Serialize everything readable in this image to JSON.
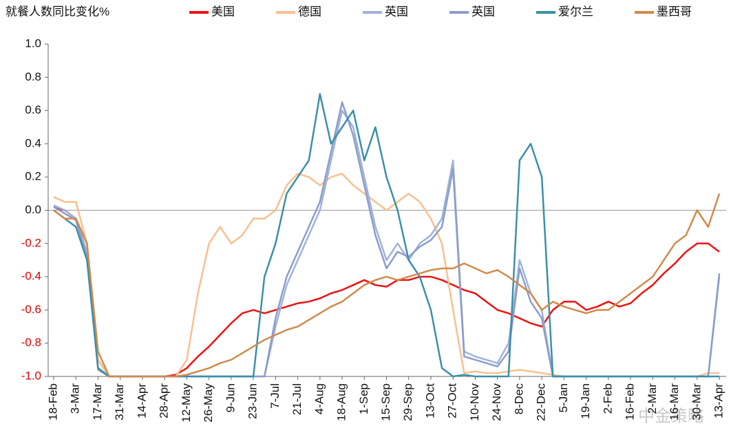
{
  "chart_data": {
    "type": "line",
    "title": "就餐人数同比变化%",
    "watermark": "中金策略",
    "categories": [
      "18-Feb",
      null,
      "3-Mar",
      null,
      "17-Mar",
      null,
      "31-Mar",
      null,
      "14-Apr",
      null,
      "28-Apr",
      null,
      "12-May",
      null,
      "26-May",
      null,
      "9-Jun",
      null,
      "23-Jun",
      null,
      "7-Jul",
      null,
      "21-Jul",
      null,
      "4-Aug",
      null,
      "18-Aug",
      null,
      "1-Sep",
      null,
      "15-Sep",
      null,
      "29-Sep",
      null,
      "13-Oct",
      null,
      "27-Oct",
      null,
      "10-Nov",
      null,
      "24-Nov",
      null,
      "8-Dec",
      null,
      "22-Dec",
      null,
      "5-Jan",
      null,
      "19-Jan",
      null,
      "2-Feb",
      null,
      "16-Feb",
      null,
      "2-Mar",
      null,
      "16-Mar",
      null,
      "30-Mar",
      null,
      "13-Apr"
    ],
    "series": [
      {
        "name": "美国",
        "color": "#ee1111",
        "values": [
          0.02,
          0.0,
          -0.05,
          -0.2,
          -0.9,
          -1,
          -1,
          -1,
          -1,
          -1,
          -1,
          -0.99,
          -0.95,
          -0.88,
          -0.82,
          -0.75,
          -0.68,
          -0.62,
          -0.6,
          -0.62,
          -0.6,
          -0.58,
          -0.56,
          -0.55,
          -0.53,
          -0.5,
          -0.48,
          -0.45,
          -0.42,
          -0.45,
          -0.46,
          -0.42,
          -0.42,
          -0.4,
          -0.4,
          -0.42,
          -0.45,
          -0.48,
          -0.5,
          -0.55,
          -0.6,
          -0.62,
          -0.65,
          -0.68,
          -0.7,
          -0.6,
          -0.55,
          -0.55,
          -0.6,
          -0.58,
          -0.55,
          -0.58,
          -0.56,
          -0.5,
          -0.45,
          -0.38,
          -0.32,
          -0.25,
          -0.2,
          -0.2,
          -0.25
        ]
      },
      {
        "name": "德国",
        "color": "#f8c08e",
        "values": [
          0.08,
          0.05,
          0.05,
          -0.2,
          -0.9,
          -1,
          -1,
          -1,
          -1,
          -1,
          -1,
          -1,
          -0.9,
          -0.5,
          -0.2,
          -0.1,
          -0.2,
          -0.15,
          -0.05,
          -0.05,
          0.0,
          0.15,
          0.22,
          0.2,
          0.15,
          0.2,
          0.22,
          0.15,
          0.1,
          0.05,
          0.0,
          0.05,
          0.1,
          0.05,
          -0.05,
          -0.2,
          -0.6,
          -0.98,
          -0.97,
          -0.98,
          -0.98,
          -0.97,
          -0.96,
          -0.97,
          -0.98,
          -0.99,
          -1,
          -1,
          -1,
          -1,
          -1,
          -1,
          -1,
          -1,
          -1,
          -1,
          -1,
          -1,
          -1,
          -0.98,
          -0.98
        ]
      },
      {
        "name": "英国",
        "color": "#9fb2da",
        "values": [
          0.03,
          0.0,
          -0.05,
          -0.25,
          -0.95,
          -1,
          -1,
          -1,
          -1,
          -1,
          -1,
          -1,
          -1,
          -1,
          -1,
          -1,
          -1,
          -1,
          -1,
          -1,
          -0.7,
          -0.45,
          -0.3,
          -0.15,
          0.0,
          0.3,
          0.6,
          0.5,
          0.2,
          -0.1,
          -0.3,
          -0.2,
          -0.3,
          -0.2,
          -0.15,
          -0.05,
          0.3,
          -0.85,
          -0.88,
          -0.9,
          -0.92,
          -0.8,
          -0.3,
          -0.5,
          -0.6,
          -1,
          -1,
          -1,
          -1,
          -1,
          -1,
          -1,
          -1,
          -1,
          -1,
          -1,
          -1,
          -1,
          -1,
          -1,
          -0.4
        ]
      },
      {
        "name": "英国",
        "color": "#8c9ccb",
        "values": [
          0.02,
          -0.02,
          -0.06,
          -0.28,
          -0.96,
          -1,
          -1,
          -1,
          -1,
          -1,
          -1,
          -1,
          -1,
          -1,
          -1,
          -1,
          -1,
          -1,
          -1,
          -1,
          -0.65,
          -0.4,
          -0.25,
          -0.1,
          0.05,
          0.35,
          0.65,
          0.45,
          0.15,
          -0.15,
          -0.35,
          -0.25,
          -0.28,
          -0.22,
          -0.18,
          -0.1,
          0.25,
          -0.88,
          -0.9,
          -0.92,
          -0.94,
          -0.85,
          -0.35,
          -0.55,
          -0.65,
          -1,
          -1,
          -1,
          -1,
          -1,
          -1,
          -1,
          -1,
          -1,
          -1,
          -1,
          -1,
          -1,
          -1,
          -1,
          -0.38
        ]
      },
      {
        "name": "爱尔兰",
        "color": "#3a8fa8",
        "values": [
          0.0,
          -0.05,
          -0.1,
          -0.3,
          -0.95,
          -1,
          -1,
          -1,
          -1,
          -1,
          -1,
          -1,
          -1,
          -1,
          -1,
          -1,
          -1,
          -1,
          -1,
          -0.4,
          -0.2,
          0.1,
          0.2,
          0.3,
          0.7,
          0.4,
          0.5,
          0.6,
          0.3,
          0.5,
          0.2,
          0.0,
          -0.3,
          -0.4,
          -0.6,
          -0.95,
          -1,
          -0.99,
          -1,
          -1,
          -1,
          -1,
          0.3,
          0.4,
          0.2,
          -1,
          -1,
          -1,
          -1,
          -1,
          -1,
          -1,
          -1,
          -1,
          -1,
          -1,
          -1,
          -1,
          -1,
          -1,
          -1
        ]
      },
      {
        "name": "墨西哥",
        "color": "#d08a4a",
        "values": [
          0.0,
          -0.05,
          -0.05,
          -0.2,
          -0.85,
          -1,
          -1,
          -1,
          -1,
          -1,
          -1,
          -1,
          -0.99,
          -0.97,
          -0.95,
          -0.92,
          -0.9,
          -0.86,
          -0.82,
          -0.78,
          -0.75,
          -0.72,
          -0.7,
          -0.66,
          -0.62,
          -0.58,
          -0.55,
          -0.5,
          -0.45,
          -0.42,
          -0.4,
          -0.42,
          -0.4,
          -0.38,
          -0.36,
          -0.35,
          -0.35,
          -0.32,
          -0.35,
          -0.38,
          -0.36,
          -0.4,
          -0.45,
          -0.5,
          -0.6,
          -0.55,
          -0.58,
          -0.6,
          -0.62,
          -0.6,
          -0.6,
          -0.55,
          -0.5,
          -0.45,
          -0.4,
          -0.3,
          -0.2,
          -0.15,
          0.0,
          -0.1,
          0.1
        ]
      }
    ],
    "ylim": [
      -1,
      1
    ],
    "yticks": [
      {
        "value": -1,
        "label": "-1.0"
      },
      -0.8,
      -0.6,
      -0.4,
      -0.2,
      {
        "value": 0,
        "label": "0.0"
      },
      0.2,
      0.4,
      0.6,
      0.8,
      {
        "value": 1,
        "label": "1.0"
      }
    ],
    "negative_tick_color": "#e00000",
    "zero_line": true,
    "grid": false
  }
}
